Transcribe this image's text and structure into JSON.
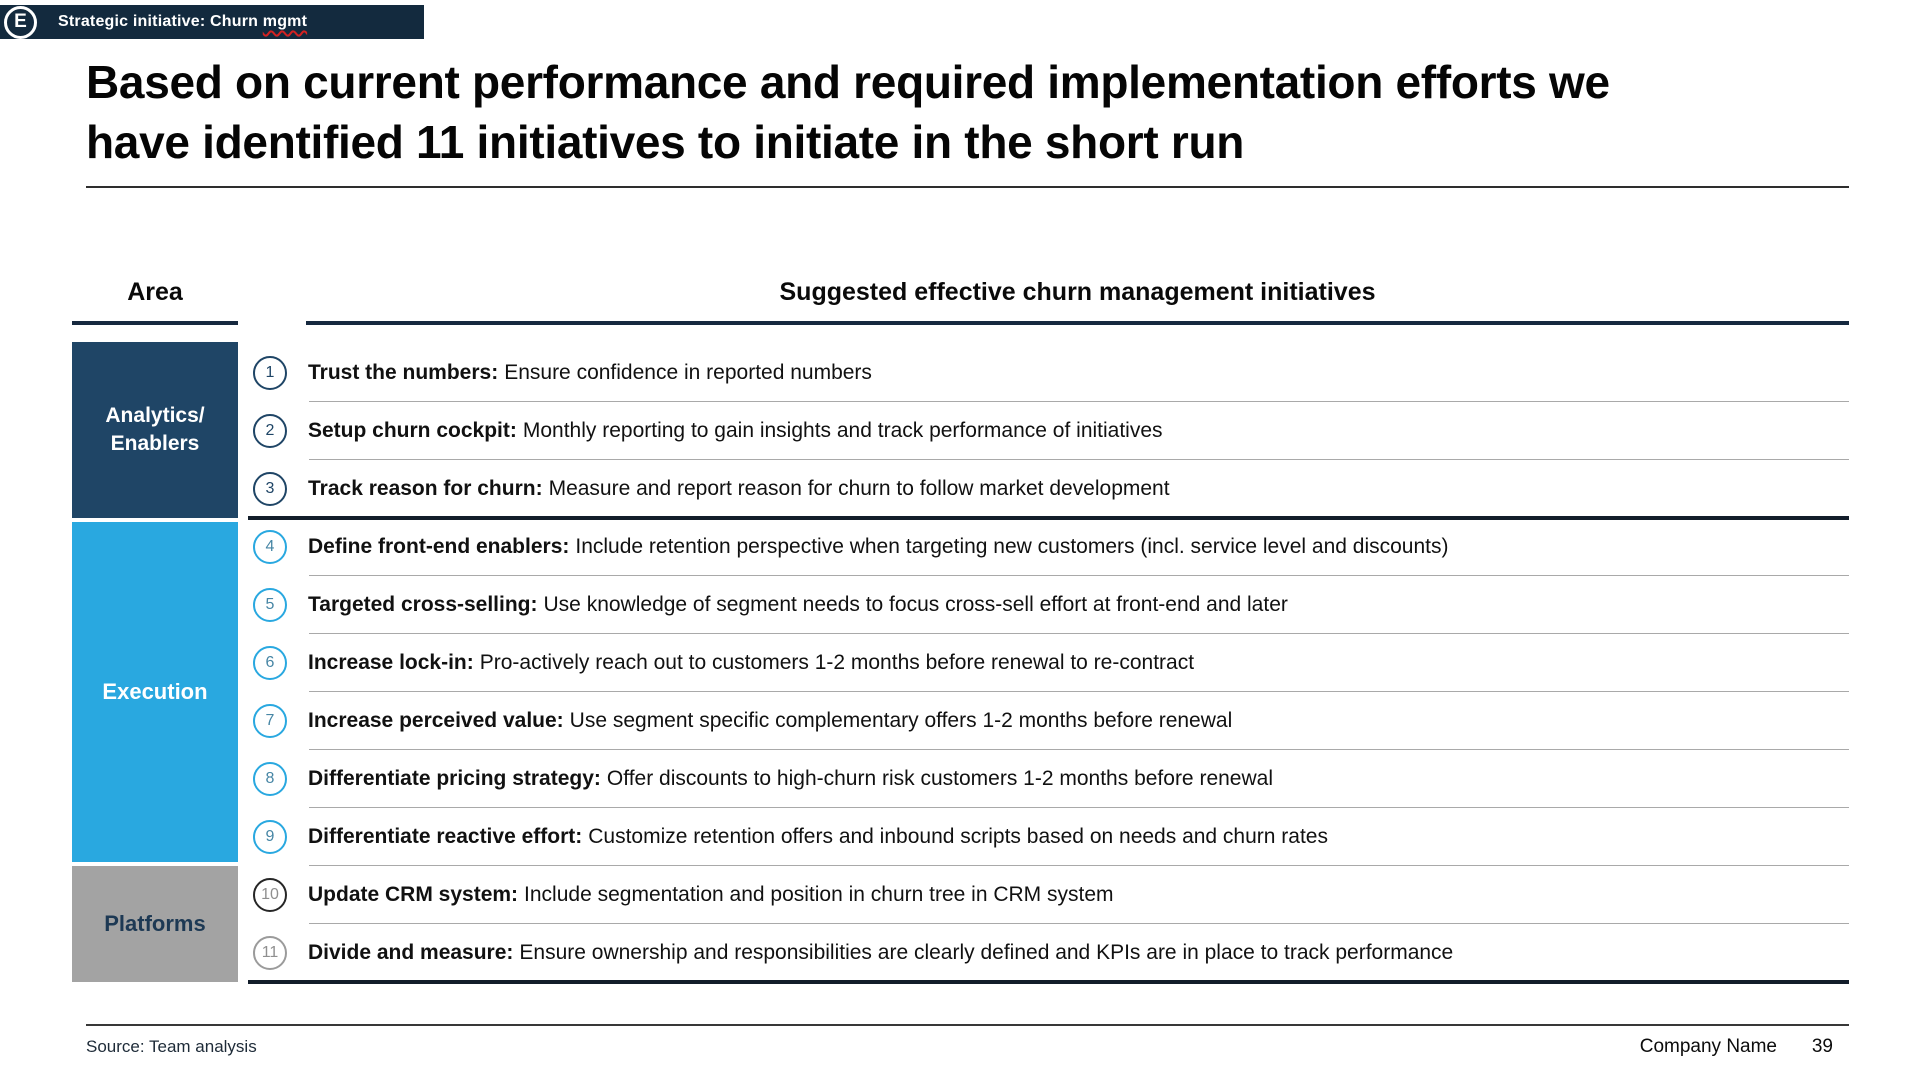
{
  "badge": {
    "letter": "E",
    "label_prefix": "Strategic initiative: Churn",
    "misspelled_word": "mgmt"
  },
  "title": {
    "line1": "Based on current performance and required implementation efforts we",
    "line2": "have identified 11 initiatives to initiate in the short run"
  },
  "table": {
    "area_header": "Area",
    "initiatives_header": "Suggested effective churn management initiatives",
    "areas": [
      {
        "label": "Analytics/\nEnablers",
        "color": "#1f4566"
      },
      {
        "label": "Execution",
        "color": "#29a8e0"
      },
      {
        "label": "Platforms",
        "color": "#a3a3a3"
      }
    ],
    "initiatives": [
      {
        "number": "1",
        "label": "Trust the numbers:",
        "description": "Ensure confidence in reported numbers"
      },
      {
        "number": "2",
        "label": "Setup churn cockpit:",
        "description": "Monthly reporting to gain insights and track performance of initiatives"
      },
      {
        "number": "3",
        "label": "Track reason for churn:",
        "description": "Measure and report reason for churn to follow market development"
      },
      {
        "number": "4",
        "label": "Define front-end enablers:",
        "description": "Include retention perspective when targeting new customers (incl. service level and discounts)"
      },
      {
        "number": "5",
        "label": "Targeted cross-selling:",
        "description": "Use knowledge of segment needs to focus cross-sell effort at front-end and later"
      },
      {
        "number": "6",
        "label": "Increase lock-in:",
        "description": "Pro-actively reach out to customers 1-2 months before renewal to re-contract"
      },
      {
        "number": "7",
        "label": "Increase perceived value:",
        "description": "Use segment specific complementary offers 1-2 months before renewal"
      },
      {
        "number": "8",
        "label": "Differentiate pricing strategy:",
        "description": "Offer discounts to high-churn risk customers 1-2 months before renewal"
      },
      {
        "number": "9",
        "label": "Differentiate reactive effort:",
        "description": "Customize retention offers and inbound scripts based on needs and churn rates"
      },
      {
        "number": "10",
        "label": "Update CRM system:",
        "description": "Include segmentation and position in churn tree in CRM system"
      },
      {
        "number": "11",
        "label": "Divide and measure:",
        "description": "Ensure ownership and responsibilities are clearly defined and KPIs are in place to track performance"
      }
    ]
  },
  "footer": {
    "source": "Source: Team analysis",
    "company": "Company Name",
    "page": "39"
  },
  "colors": {
    "badge_bar": "#132a3e",
    "analytics_navy": "#1f4566",
    "execution_blue": "#29a8e0",
    "platforms_gray": "#a3a3a3",
    "spellcheck_red": "#d32222"
  }
}
